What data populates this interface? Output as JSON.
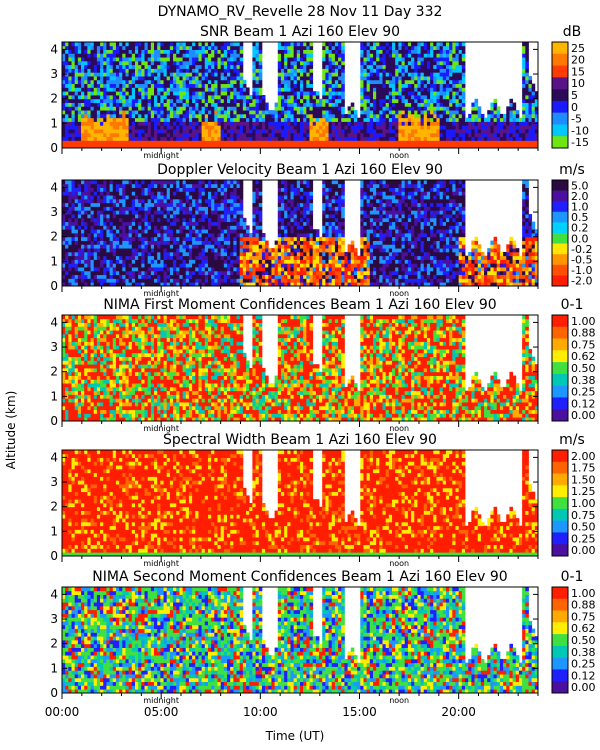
{
  "figure": {
    "header": "DYNAMO_RV_Revelle   28 Nov 11 Day 332",
    "y_axis_label": "Altitude (km)",
    "x_axis_label": "Time (UT)",
    "x_ticks": [
      "00:00",
      "05:00",
      "10:00",
      "15:00",
      "20:00"
    ],
    "x_markers": [
      "midnight",
      "noon"
    ]
  },
  "chart_data": [
    {
      "type": "heatmap",
      "title": "SNR Beam 1 Azi 160 Elev 90",
      "unit": "dB",
      "xlabel": "Time (UT)",
      "ylabel": "Altitude (km)",
      "xlim": [
        0,
        24
      ],
      "ylim": [
        0,
        4.3
      ],
      "y_ticks": [
        "0",
        "1",
        "2",
        "3",
        "4"
      ],
      "colorbar": {
        "labels": [
          "25",
          "20",
          "15",
          "10",
          "5",
          "0",
          "-5",
          "-10",
          "-15"
        ],
        "colors": [
          "#ffb400",
          "#ff7800",
          "#ff3c00",
          "#5a1488",
          "#2c0a5a",
          "#1a1aff",
          "#1f8cff",
          "#00c8ff",
          "#6ee614"
        ]
      },
      "dominant_colors": [
        "#2c0a5a",
        "#1a1aff",
        "#1f8cff",
        "#00c8ff",
        "#6ee614",
        "#ff7800",
        "#ffb400"
      ]
    },
    {
      "type": "heatmap",
      "title": "Doppler Velocity Beam 1 Azi 160 Elev 90",
      "unit": "m/s",
      "xlabel": "Time (UT)",
      "ylabel": "Altitude (km)",
      "xlim": [
        0,
        24
      ],
      "ylim": [
        0,
        4.3
      ],
      "y_ticks": [
        "0",
        "1",
        "2",
        "3",
        "4"
      ],
      "colorbar": {
        "labels": [
          "5.0",
          "2.0",
          "1.0",
          "0.5",
          "0.2",
          "0.0",
          "-0.2",
          "-0.5",
          "-1.0",
          "-2.0"
        ],
        "colors": [
          "#2a0a40",
          "#4b10a0",
          "#2020ff",
          "#1e96ff",
          "#00d2ff",
          "#40e040",
          "#ffe600",
          "#ff9600",
          "#ff5000",
          "#ff1e00"
        ]
      },
      "dominant_colors": [
        "#2a0a40",
        "#4b10a0",
        "#2020ff",
        "#1e96ff",
        "#ff1e00",
        "#ff9600"
      ]
    },
    {
      "type": "heatmap",
      "title": "NIMA First Moment Confidences Beam 1 Azi 160 Elev 90",
      "unit": "0-1",
      "xlabel": "Time (UT)",
      "ylabel": "Altitude (km)",
      "xlim": [
        0,
        24
      ],
      "ylim": [
        0,
        4.3
      ],
      "y_ticks": [
        "0",
        "1",
        "2",
        "3",
        "4"
      ],
      "colorbar": {
        "labels": [
          "1.00",
          "0.88",
          "0.75",
          "0.62",
          "0.50",
          "0.38",
          "0.25",
          "0.12",
          "0.00"
        ],
        "colors": [
          "#ff1e00",
          "#ff6400",
          "#ffaa00",
          "#ffee00",
          "#40e040",
          "#00c8b4",
          "#1e96ff",
          "#2020ff",
          "#4b10a0"
        ]
      },
      "dominant_colors": [
        "#ff1e00",
        "#ffaa00",
        "#ffee00",
        "#40e040",
        "#00c8b4"
      ]
    },
    {
      "type": "heatmap",
      "title": "Spectral Width Beam 1 Azi 160 Elev 90",
      "unit": "m/s",
      "xlabel": "Time (UT)",
      "ylabel": "Altitude (km)",
      "xlim": [
        0,
        24
      ],
      "ylim": [
        0,
        4.3
      ],
      "y_ticks": [
        "0",
        "1",
        "2",
        "3",
        "4"
      ],
      "colorbar": {
        "labels": [
          "2.00",
          "1.75",
          "1.50",
          "1.25",
          "1.00",
          "0.75",
          "0.50",
          "0.25",
          "0.00"
        ],
        "colors": [
          "#ff1e00",
          "#ff6400",
          "#ffaa00",
          "#ffee00",
          "#40e040",
          "#00c8b4",
          "#1e96ff",
          "#2020ff",
          "#4b10a0"
        ]
      },
      "dominant_colors": [
        "#ff1e00",
        "#ff6400",
        "#ffee00",
        "#40e040"
      ]
    },
    {
      "type": "heatmap",
      "title": "NIMA Second Moment Confidences Beam 1 Azi 160 Elev 90",
      "unit": "0-1",
      "xlabel": "Time (UT)",
      "ylabel": "Altitude (km)",
      "xlim": [
        0,
        24
      ],
      "ylim": [
        0,
        4.3
      ],
      "y_ticks": [
        "0",
        "1",
        "2",
        "3",
        "4"
      ],
      "colorbar": {
        "labels": [
          "1.00",
          "0.88",
          "0.75",
          "0.62",
          "0.50",
          "0.38",
          "0.25",
          "0.12",
          "0.00"
        ],
        "colors": [
          "#ff1e00",
          "#ff6400",
          "#ffaa00",
          "#ffee00",
          "#40e040",
          "#00c8b4",
          "#1e96ff",
          "#2020ff",
          "#4b10a0"
        ]
      },
      "dominant_colors": [
        "#40e040",
        "#00c8b4",
        "#1e96ff",
        "#ffee00",
        "#2020ff"
      ]
    }
  ]
}
